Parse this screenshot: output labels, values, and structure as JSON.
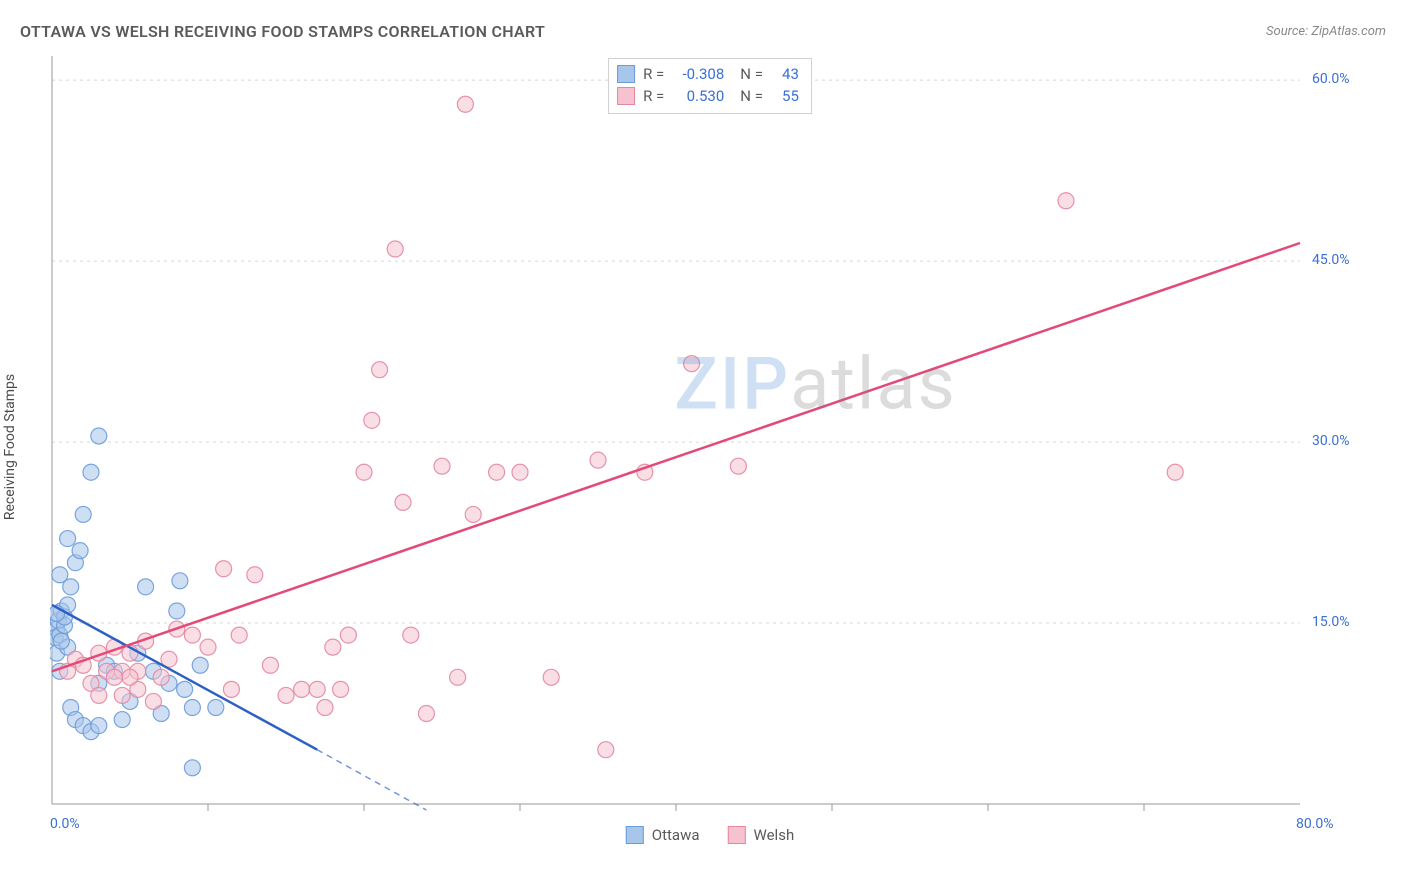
{
  "title": "OTTAWA VS WELSH RECEIVING FOOD STAMPS CORRELATION CHART",
  "source_label": "Source: ZipAtlas.com",
  "y_axis_title": "Receiving Food Stamps",
  "watermark": {
    "part1": "ZIP",
    "part2": "atlas"
  },
  "chart": {
    "type": "scatter",
    "background_color": "#ffffff",
    "xlim": [
      0,
      80
    ],
    "ylim": [
      0,
      62
    ],
    "x_ticks_minor": [
      10,
      20,
      30,
      40,
      50,
      60,
      70
    ],
    "x_tick_labels": [
      {
        "v": 0,
        "label": "0.0%"
      },
      {
        "v": 80,
        "label": "80.0%"
      }
    ],
    "y_tick_labels": [
      {
        "v": 15,
        "label": "15.0%"
      },
      {
        "v": 30,
        "label": "30.0%"
      },
      {
        "v": 45,
        "label": "45.0%"
      },
      {
        "v": 60,
        "label": "60.0%"
      }
    ],
    "grid_color": "#d8d8d8",
    "axis_color": "#9a9a9a",
    "marker_radius": 8,
    "marker_opacity": 0.55,
    "line_width_solid": 2.5,
    "line_width_dash": 1.4,
    "series": [
      {
        "name": "Ottawa",
        "color_fill": "#a8c5ea",
        "color_stroke": "#6a9bdc",
        "line_color": "#2d5fc4",
        "R": "-0.308",
        "N": "43",
        "trend_solid": {
          "x1": 0,
          "y1": 16.5,
          "x2": 17,
          "y2": 4.5
        },
        "trend_dash": {
          "x1": 17,
          "y1": 4.5,
          "x2": 24,
          "y2": -0.5
        },
        "points": [
          [
            0.3,
            14.5
          ],
          [
            0.4,
            15.2
          ],
          [
            0.2,
            13.8
          ],
          [
            0.5,
            14.0
          ],
          [
            0.6,
            16.0
          ],
          [
            0.8,
            14.8
          ],
          [
            0.3,
            12.5
          ],
          [
            0.5,
            11.0
          ],
          [
            1.0,
            13.0
          ],
          [
            1.2,
            18.0
          ],
          [
            1.5,
            20.0
          ],
          [
            1.0,
            22.0
          ],
          [
            1.8,
            21.0
          ],
          [
            2.0,
            24.0
          ],
          [
            2.5,
            27.5
          ],
          [
            3.0,
            30.5
          ],
          [
            1.2,
            8.0
          ],
          [
            1.5,
            7.0
          ],
          [
            2.0,
            6.5
          ],
          [
            2.5,
            6.0
          ],
          [
            3.0,
            6.5
          ],
          [
            3.0,
            10.0
          ],
          [
            3.5,
            11.5
          ],
          [
            4.0,
            11.0
          ],
          [
            4.5,
            7.0
          ],
          [
            5.0,
            8.5
          ],
          [
            5.5,
            12.5
          ],
          [
            6.0,
            18.0
          ],
          [
            6.5,
            11.0
          ],
          [
            7.0,
            7.5
          ],
          [
            7.5,
            10.0
          ],
          [
            8.0,
            16.0
          ],
          [
            8.2,
            18.5
          ],
          [
            8.5,
            9.5
          ],
          [
            9.0,
            8.0
          ],
          [
            9.5,
            11.5
          ],
          [
            9.0,
            3.0
          ],
          [
            10.5,
            8.0
          ],
          [
            0.8,
            15.5
          ],
          [
            0.5,
            19.0
          ],
          [
            1.0,
            16.5
          ],
          [
            0.3,
            15.8
          ],
          [
            0.6,
            13.5
          ]
        ]
      },
      {
        "name": "Welsh",
        "color_fill": "#f6c2cf",
        "color_stroke": "#e487a0",
        "line_color": "#e24a78",
        "R": "0.530",
        "N": "55",
        "trend_solid": {
          "x1": 0,
          "y1": 11.0,
          "x2": 80,
          "y2": 46.5
        },
        "trend_dash": null,
        "points": [
          [
            1.0,
            11.0
          ],
          [
            1.5,
            12.0
          ],
          [
            2.0,
            11.5
          ],
          [
            2.5,
            10.0
          ],
          [
            3.0,
            12.5
          ],
          [
            3.0,
            9.0
          ],
          [
            3.5,
            11.0
          ],
          [
            4.0,
            13.0
          ],
          [
            4.5,
            11.0
          ],
          [
            4.5,
            9.0
          ],
          [
            5.0,
            12.5
          ],
          [
            5.5,
            9.5
          ],
          [
            5.5,
            11.0
          ],
          [
            6.0,
            13.5
          ],
          [
            6.5,
            8.5
          ],
          [
            7.0,
            10.5
          ],
          [
            7.5,
            12.0
          ],
          [
            8.0,
            14.5
          ],
          [
            9.0,
            14.0
          ],
          [
            10.0,
            13.0
          ],
          [
            11.0,
            19.5
          ],
          [
            11.5,
            9.5
          ],
          [
            12.0,
            14.0
          ],
          [
            13.0,
            19.0
          ],
          [
            14.0,
            11.5
          ],
          [
            15.0,
            9.0
          ],
          [
            16.0,
            9.5
          ],
          [
            17.0,
            9.5
          ],
          [
            17.5,
            8.0
          ],
          [
            18.0,
            13.0
          ],
          [
            18.5,
            9.5
          ],
          [
            19.0,
            14.0
          ],
          [
            20.0,
            27.5
          ],
          [
            20.5,
            31.8
          ],
          [
            21.0,
            36.0
          ],
          [
            22.0,
            46.0
          ],
          [
            22.5,
            25.0
          ],
          [
            23.0,
            14.0
          ],
          [
            24.0,
            7.5
          ],
          [
            25.0,
            28.0
          ],
          [
            26.0,
            10.5
          ],
          [
            26.5,
            58.0
          ],
          [
            27.0,
            24.0
          ],
          [
            28.5,
            27.5
          ],
          [
            30.0,
            27.5
          ],
          [
            32.0,
            10.5
          ],
          [
            35.0,
            28.5
          ],
          [
            35.5,
            4.5
          ],
          [
            38.0,
            27.5
          ],
          [
            41.0,
            36.5
          ],
          [
            44.0,
            28.0
          ],
          [
            65.0,
            50.0
          ],
          [
            72.0,
            27.5
          ],
          [
            5.0,
            10.5
          ],
          [
            4.0,
            10.5
          ]
        ]
      }
    ]
  },
  "bottom_legend": [
    {
      "label": "Ottawa",
      "fill": "#a8c5ea",
      "stroke": "#6a9bdc"
    },
    {
      "label": "Welsh",
      "fill": "#f6c2cf",
      "stroke": "#e487a0"
    }
  ],
  "label_color": "#3b6fd6",
  "title_color": "#5a5a5a",
  "title_fontsize": 16
}
